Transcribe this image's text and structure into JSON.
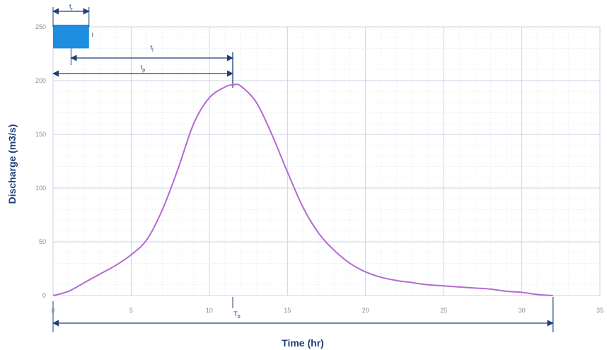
{
  "chart_data": {
    "type": "line",
    "title": "",
    "xlabel": "Time (hr)",
    "ylabel": "Discharge (m3/s)",
    "xlim": [
      0,
      35
    ],
    "ylim": [
      0,
      250
    ],
    "x_ticks": [
      "0",
      "5",
      "10",
      "15",
      "20",
      "25",
      "30",
      "35"
    ],
    "y_ticks": [
      "0",
      "50",
      "100",
      "150",
      "200",
      "250"
    ],
    "grid": true,
    "legend": "none",
    "series": [
      {
        "color": "#b46ad2",
        "x": [
          0,
          1,
          2,
          3,
          4,
          5,
          6,
          7,
          8,
          9,
          10,
          11,
          11.5,
          12,
          13,
          14,
          15,
          16,
          17,
          18,
          19,
          20,
          21,
          22,
          23,
          24,
          25,
          26,
          27,
          28,
          29,
          30,
          31,
          32
        ],
        "y": [
          0,
          4,
          12,
          20,
          28,
          38,
          52,
          80,
          118,
          160,
          184,
          194,
          196,
          195,
          180,
          150,
          115,
          82,
          58,
          42,
          30,
          22,
          17,
          14,
          12,
          10,
          9,
          8,
          7,
          6,
          4,
          3,
          1,
          0
        ]
      }
    ],
    "rainfall_bar": {
      "x_start": 0,
      "x_end": 2.3,
      "y_bottom": 230,
      "y_top": 252,
      "color": "#1d8ee0"
    },
    "annotations": {
      "rainfall_duration_label": "t",
      "rainfall_duration_sub": "r",
      "rainfall_intensity_label": "i",
      "lag_label": "t",
      "lag_sub": "l",
      "time_to_peak_label": "t",
      "time_to_peak_sub": "p",
      "base_time_label": "T",
      "base_time_sub": "b",
      "peak_time": 11.5,
      "base_time": 32
    }
  }
}
